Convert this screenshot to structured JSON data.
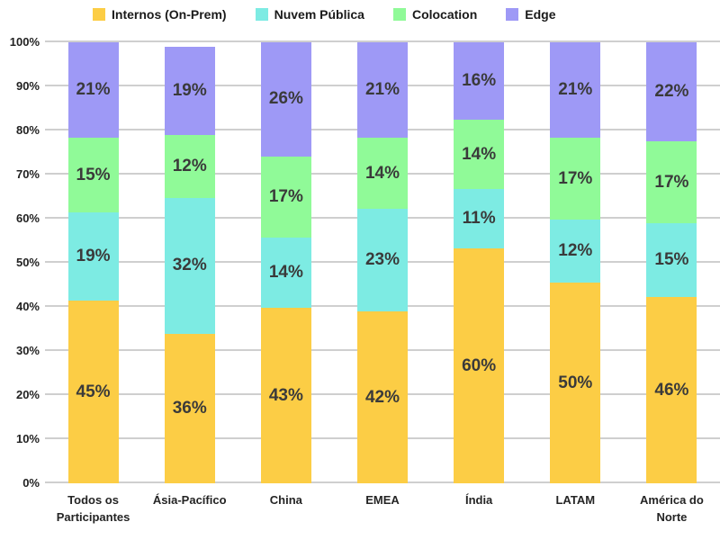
{
  "chart_data": {
    "type": "bar",
    "variant": "stacked-100-percent-columns",
    "title": "",
    "xlabel": "",
    "ylabel": "",
    "ylim": [
      0,
      100
    ],
    "grid": true,
    "grid_color": "#cfcfcf",
    "label_color": "#3a3a3a",
    "legend_position": "top",
    "yticks": [
      "0%",
      "10%",
      "20%",
      "30%",
      "40%",
      "50%",
      "60%",
      "70%",
      "80%",
      "90%",
      "100%"
    ],
    "categories": [
      "Todos os Participantes",
      "Ásia-Pacífico",
      "China",
      "EMEA",
      "Índia",
      "LATAM",
      "América do Norte"
    ],
    "series": [
      {
        "name": "Internos (On-Prem)",
        "color": "#fccd45",
        "values": [
          45,
          36,
          43,
          42,
          60,
          50,
          46
        ],
        "labels": [
          "45%",
          "36%",
          "43%",
          "42%",
          "60%",
          "50%",
          "46%"
        ]
      },
      {
        "name": "Nuvem Pública",
        "color": "#7debe3",
        "values": [
          19,
          32,
          14,
          23,
          11,
          12,
          15
        ],
        "labels": [
          "19%",
          "32%",
          "14%",
          "23%",
          "11%",
          "12%",
          "15%"
        ]
      },
      {
        "name": "Colocation",
        "color": "#90fa98",
        "values": [
          15,
          12,
          17,
          14,
          14,
          17,
          17
        ],
        "labels": [
          "15%",
          "12%",
          "17%",
          "14%",
          "14%",
          "17%",
          "17%"
        ]
      },
      {
        "name": "Edge",
        "color": "#9e99f6",
        "values": [
          21,
          19,
          26,
          21,
          16,
          21,
          22
        ],
        "labels": [
          "21%",
          "19%",
          "26%",
          "21%",
          "16%",
          "21%",
          "22%"
        ]
      }
    ]
  }
}
